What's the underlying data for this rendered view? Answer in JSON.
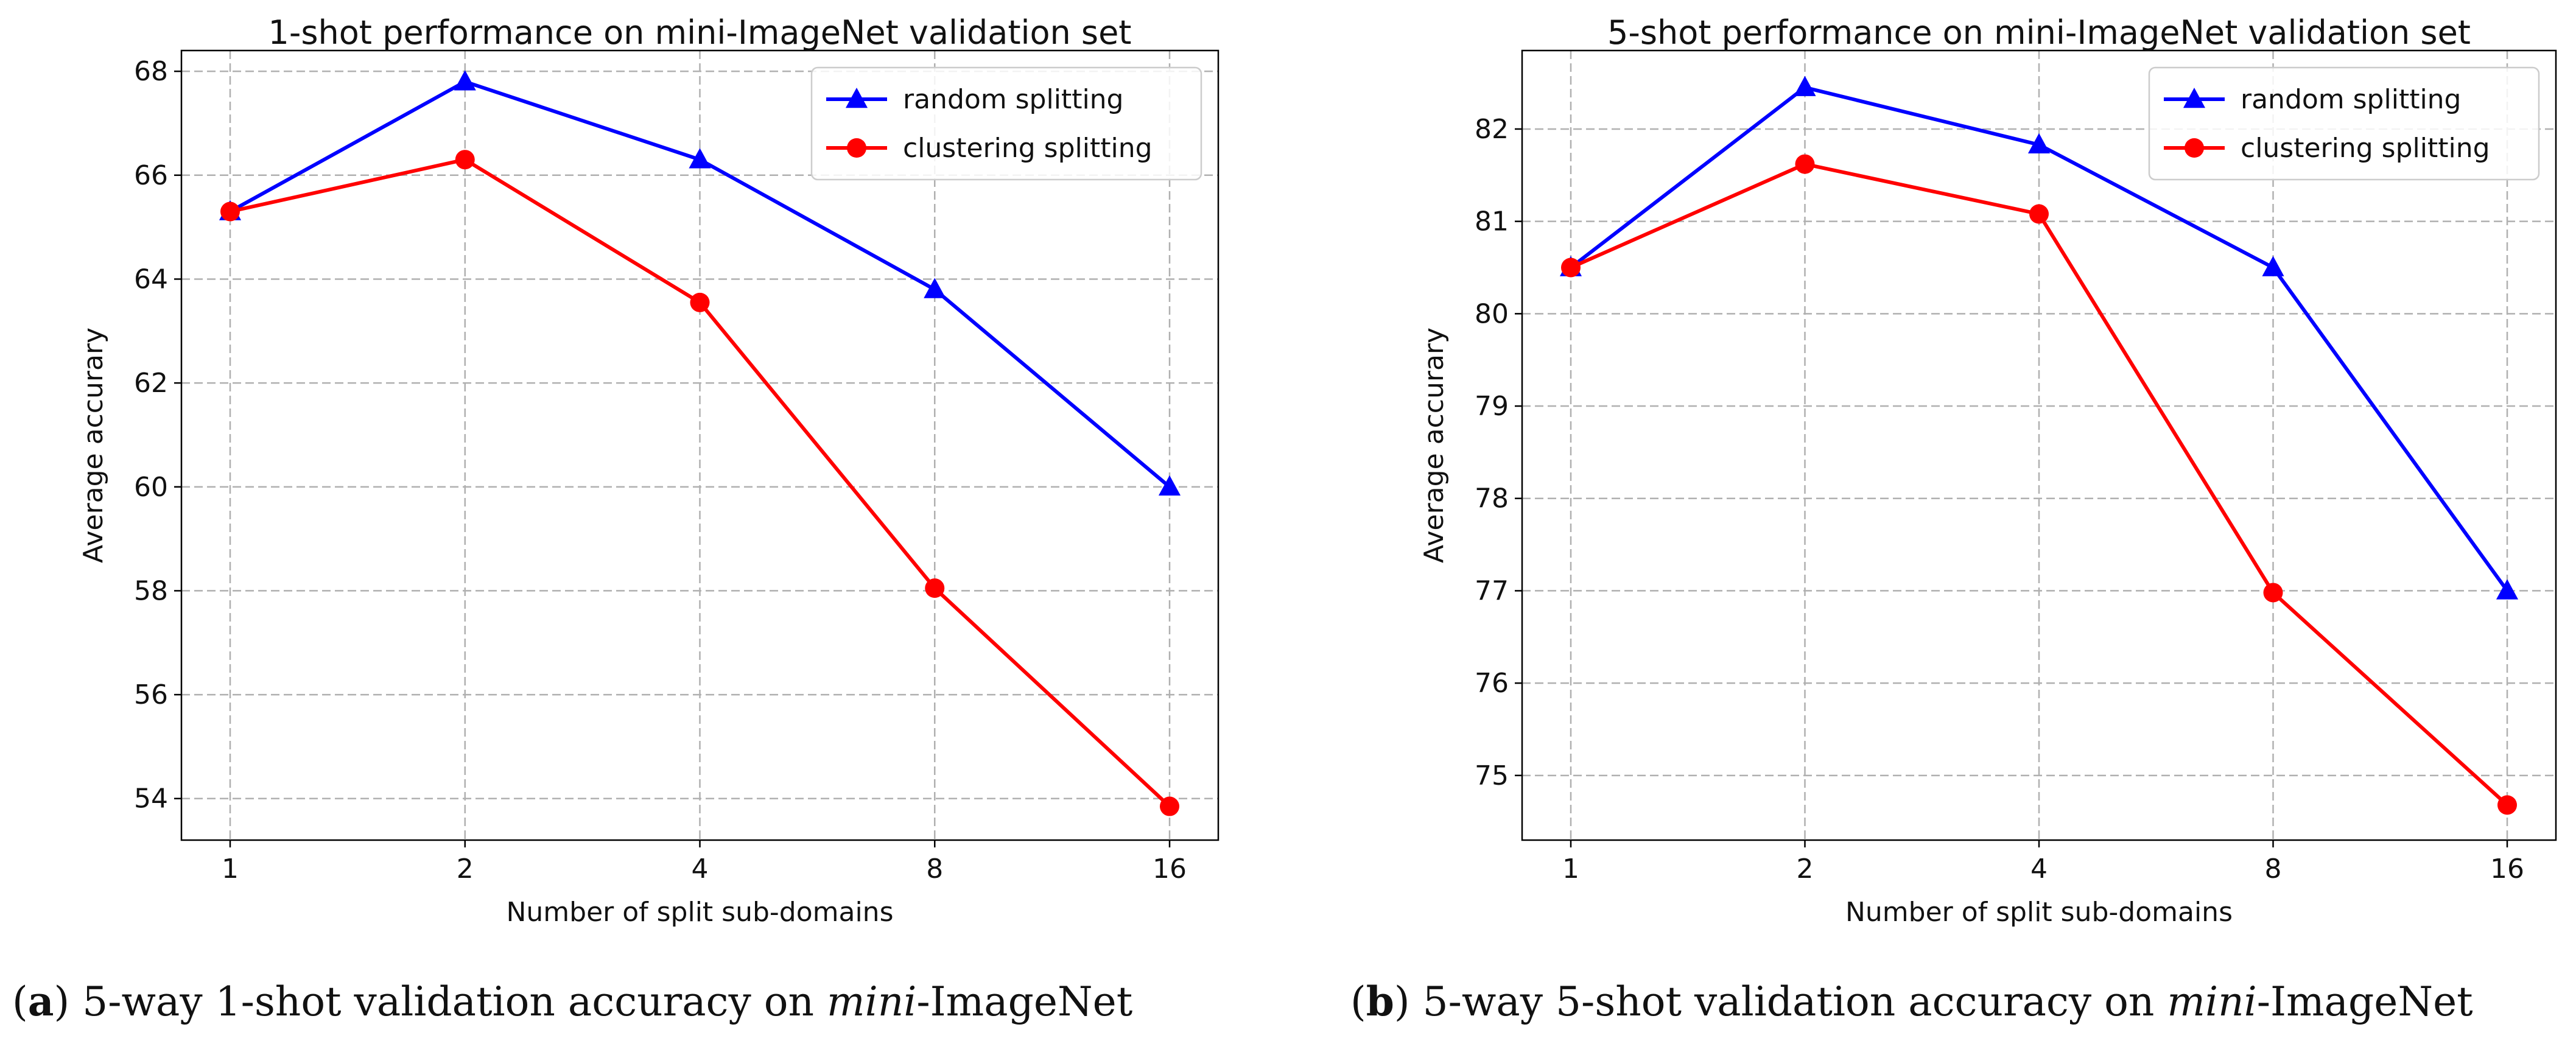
{
  "chart_data": [
    {
      "type": "line",
      "title": "1-shot performance on mini-ImageNet validation set",
      "xlabel": "Number of split sub-domains",
      "ylabel": "Average accurary",
      "categories": [
        "1",
        "2",
        "4",
        "8",
        "16"
      ],
      "yticks": [
        54,
        56,
        58,
        60,
        62,
        64,
        66,
        68
      ],
      "ylim": [
        53.2,
        68.4
      ],
      "grid": true,
      "legend": "top-right",
      "series": [
        {
          "name": "random splitting",
          "color": "#0000ff",
          "marker": "triangle",
          "values": [
            65.3,
            67.8,
            66.3,
            63.8,
            60.0
          ]
        },
        {
          "name": "clustering splitting",
          "color": "#ff0000",
          "marker": "circle",
          "values": [
            65.3,
            66.3,
            63.55,
            58.05,
            53.85
          ]
        }
      ],
      "caption": {
        "label": "a",
        "prefix": "5-way 1-shot validation accuracy on ",
        "emph": "mini",
        "suffix": "-ImageNet"
      }
    },
    {
      "type": "line",
      "title": "5-shot performance on mini-ImageNet validation set",
      "xlabel": "Number of split sub-domains",
      "ylabel": "Average accurary",
      "categories": [
        "1",
        "2",
        "4",
        "8",
        "16"
      ],
      "yticks": [
        75,
        76,
        77,
        78,
        79,
        80,
        81,
        82
      ],
      "ylim": [
        74.3,
        82.85
      ],
      "grid": true,
      "legend": "top-right",
      "series": [
        {
          "name": "random splitting",
          "color": "#0000ff",
          "marker": "triangle",
          "values": [
            80.5,
            82.45,
            81.83,
            80.5,
            77.0
          ]
        },
        {
          "name": "clustering splitting",
          "color": "#ff0000",
          "marker": "circle",
          "values": [
            80.5,
            81.62,
            81.08,
            76.98,
            74.68
          ]
        }
      ],
      "caption": {
        "label": "b",
        "prefix": "5-way 5-shot validation accuracy on ",
        "emph": "mini",
        "suffix": "-ImageNet"
      }
    }
  ]
}
